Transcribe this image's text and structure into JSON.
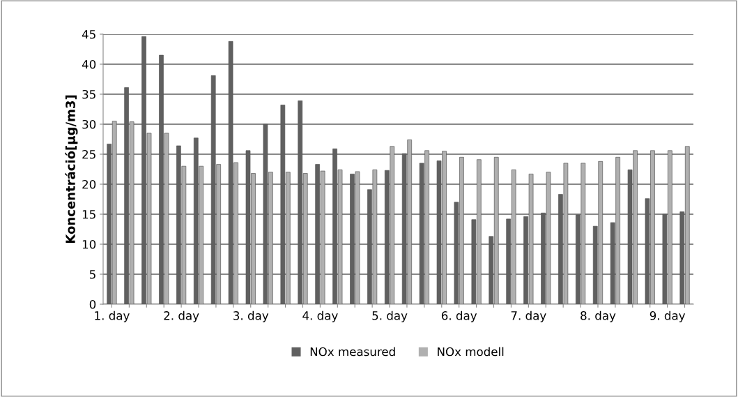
{
  "chart_data": {
    "type": "bar",
    "ylabel": "Koncentráció[µg/m3]",
    "categories": [
      "1. day",
      null,
      null,
      null,
      "2. day",
      null,
      null,
      null,
      "3. day",
      null,
      null,
      null,
      "4. day",
      null,
      null,
      null,
      "5. day",
      null,
      null,
      null,
      "6. day",
      null,
      null,
      null,
      "7. day",
      null,
      null,
      null,
      "8. day",
      null,
      null,
      null,
      "9. day",
      null
    ],
    "series": [
      {
        "name": "NOx measured",
        "color": "#606060",
        "values": [
          26.7,
          36.1,
          44.6,
          41.5,
          26.4,
          27.7,
          38.1,
          43.8,
          25.6,
          30.0,
          33.2,
          33.9,
          23.3,
          25.9,
          21.7,
          19.1,
          22.3,
          25.1,
          23.5,
          23.9,
          17.0,
          14.1,
          11.3,
          14.2,
          14.6,
          15.2,
          18.3,
          14.9,
          13.0,
          13.6,
          22.4,
          17.6,
          15.0,
          15.4
        ]
      },
      {
        "name": "NOx modell",
        "color": "#b0b0b0",
        "values": [
          30.5,
          30.4,
          28.5,
          28.5,
          23.0,
          23.0,
          23.3,
          23.6,
          21.8,
          22.0,
          22.0,
          21.8,
          22.2,
          22.4,
          22.1,
          22.4,
          26.3,
          27.4,
          25.6,
          25.5,
          24.5,
          24.1,
          24.5,
          22.4,
          21.7,
          22.0,
          23.5,
          23.5,
          23.8,
          24.5,
          25.6,
          25.6,
          25.6,
          26.3
        ]
      }
    ],
    "ylim": [
      0,
      45
    ],
    "yticks": [
      0,
      5,
      10,
      15,
      20,
      25,
      30,
      35,
      40,
      45
    ],
    "grid": "y",
    "legend": "bottom"
  }
}
